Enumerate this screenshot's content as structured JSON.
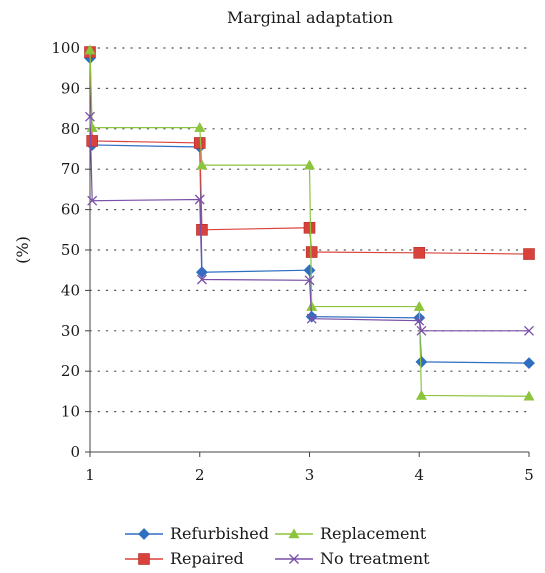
{
  "chart_data": {
    "type": "line",
    "step": true,
    "title": "Marginal adaptation",
    "xlabel": "",
    "ylabel": "(%)",
    "xlim": [
      1,
      5
    ],
    "ylim": [
      0,
      100
    ],
    "xticks": [
      "1",
      "2",
      "3",
      "4",
      "5"
    ],
    "yticks": [
      "0",
      "10",
      "20",
      "30",
      "40",
      "50",
      "60",
      "70",
      "80",
      "90",
      "100"
    ],
    "grid": "horizontal-dotted",
    "legend_position": "bottom",
    "series": [
      {
        "name": "Refurbished",
        "color": "#2e6fc2",
        "marker": "diamond",
        "points": [
          [
            1,
            97.5
          ],
          [
            1.02,
            76
          ],
          [
            2,
            75.5
          ],
          [
            2.02,
            44.5
          ],
          [
            3,
            45
          ],
          [
            3.02,
            33.5
          ],
          [
            4,
            33.2
          ],
          [
            4.02,
            22.3
          ],
          [
            5,
            22
          ]
        ]
      },
      {
        "name": "Repaired",
        "color": "#d9423c",
        "marker": "square",
        "points": [
          [
            1,
            99
          ],
          [
            1.02,
            77
          ],
          [
            2,
            76.5
          ],
          [
            2.02,
            55
          ],
          [
            3,
            55.5
          ],
          [
            3.02,
            49.5
          ],
          [
            4,
            49.3
          ],
          [
            5,
            49
          ]
        ]
      },
      {
        "name": "Replacement",
        "color": "#8cc43c",
        "marker": "triangle",
        "points": [
          [
            1,
            99.5
          ],
          [
            1.02,
            80.3
          ],
          [
            2,
            80.3
          ],
          [
            2.02,
            71
          ],
          [
            3,
            71
          ],
          [
            3.02,
            36
          ],
          [
            4,
            36
          ],
          [
            4.02,
            14
          ],
          [
            5,
            13.8
          ]
        ]
      },
      {
        "name": "No treatment",
        "color": "#7a4fa8",
        "marker": "x",
        "points": [
          [
            1,
            83
          ],
          [
            1.02,
            62.2
          ],
          [
            2,
            62.5
          ],
          [
            2.02,
            42.7
          ],
          [
            3,
            42.5
          ],
          [
            3.02,
            33
          ],
          [
            4,
            32.5
          ],
          [
            4.02,
            30
          ],
          [
            5,
            30
          ]
        ]
      }
    ],
    "legend_layout": [
      [
        "Refurbished",
        "Replacement"
      ],
      [
        "Repaired",
        "No treatment"
      ]
    ]
  }
}
